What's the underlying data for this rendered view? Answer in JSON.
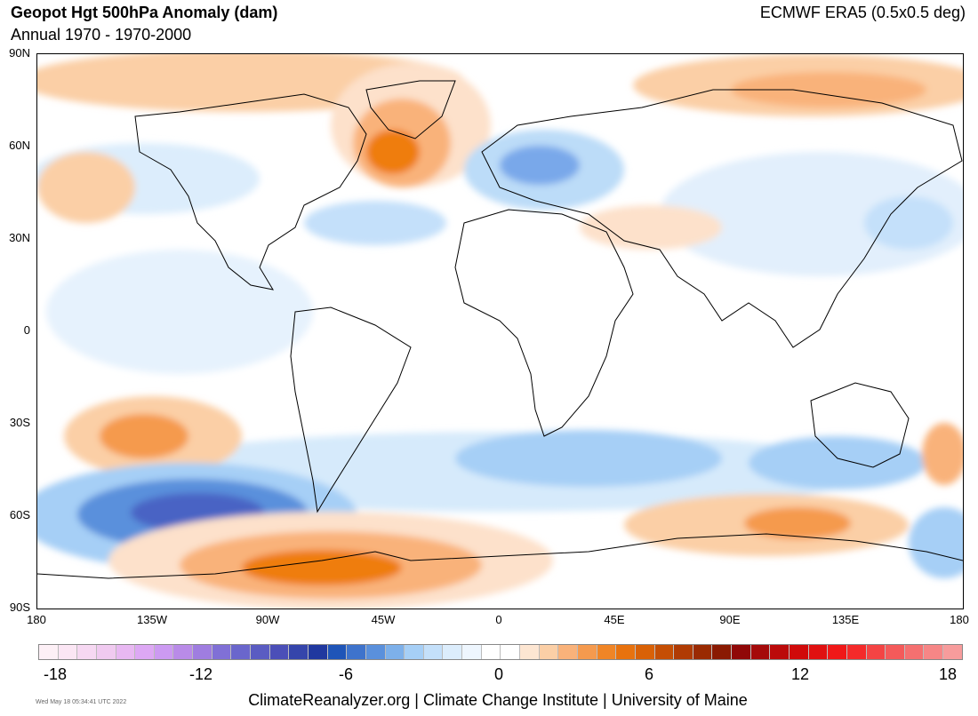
{
  "header": {
    "title": "Geopot Hgt 500hPa Anomaly (dam)",
    "subtitle": "Annual 1970 - 1970-2000",
    "source": "ECMWF ERA5 (0.5x0.5 deg)"
  },
  "map": {
    "lat_labels": [
      "90N",
      "60N",
      "30N",
      "0",
      "30S",
      "60S",
      "90S"
    ],
    "lon_labels": [
      "180",
      "135W",
      "90W",
      "45W",
      "0",
      "45E",
      "90E",
      "135E",
      "180"
    ],
    "colors": {
      "blue_strong": "#4a63c4",
      "blue_mid": "#79a8ea",
      "blue_light": "#cfe6fb",
      "orange_strong": "#ef7d10",
      "orange_mid": "#f9b27a",
      "orange_light": "#fde1cb",
      "land_outline": "#000000"
    }
  },
  "legend": {
    "labels": [
      "-18",
      "-12",
      "-6",
      "0",
      "6",
      "12",
      "18"
    ],
    "colors": [
      "#fdf0f6",
      "#fbe6f4",
      "#f6d8f2",
      "#f0caf0",
      "#e8b8f2",
      "#dda8f4",
      "#cc9af2",
      "#b98be8",
      "#9f7de0",
      "#8070d6",
      "#6a66cc",
      "#5a5cc2",
      "#4b4fb8",
      "#3545ab",
      "#20389f",
      "#1f55b8",
      "#3e73cc",
      "#5a90dc",
      "#7db0ea",
      "#a6cff6",
      "#c4e0fa",
      "#dcedfc",
      "#eef6fe",
      "#ffffff",
      "#ffffff",
      "#fde6d2",
      "#fbcfa6",
      "#f9b27a",
      "#f59a4e",
      "#f08526",
      "#e8720e",
      "#d96106",
      "#c54e04",
      "#b03b03",
      "#9a2a02",
      "#8a1a02",
      "#900808",
      "#a50a0a",
      "#bb0a0a",
      "#d00a0a",
      "#e01010",
      "#f01818",
      "#f42a2a",
      "#f44444",
      "#f45a5a",
      "#f57070",
      "#f68686",
      "#f79c9c"
    ]
  },
  "footer": {
    "credit": "ClimateReanalyzer.org | Climate Change Institute | University of Maine",
    "timestamp": "Wed May 18 05:34:41 UTC 2022"
  }
}
